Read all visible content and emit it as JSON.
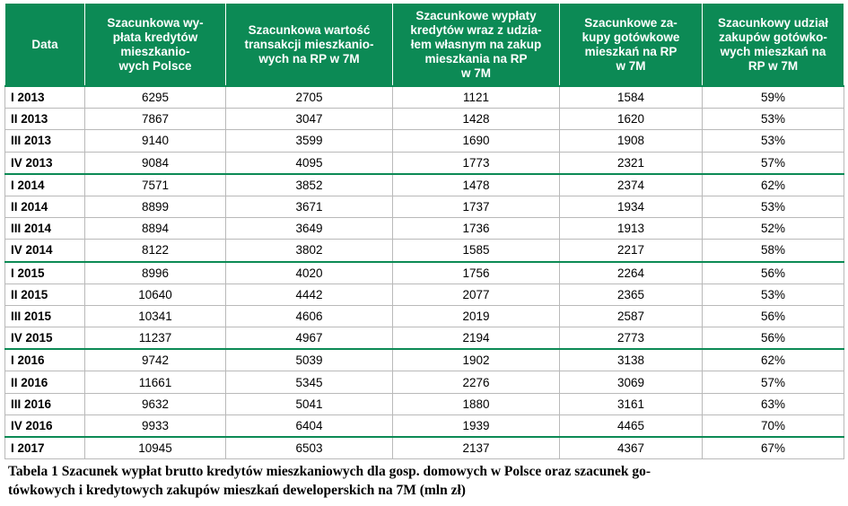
{
  "table": {
    "headers": [
      "Data",
      "Szacunkowa wy-\npłata kredytów\nmieszkanio-\nwych Polsce",
      "Szacunkowa wartość\ntransakcji mieszkanio-\nwych na RP w 7M",
      "Szacunkowe wypłaty\nkredytów wraz z udzia-\nłem własnym na zakup\nmieszkania na RP\nw 7M",
      "Szacunkowe za-\nkupy gotówkowe\nmieszkań na RP\nw 7M",
      "Szacunkowy udział\nzakupów gotówko-\nwych mieszkań na\nRP w 7M"
    ],
    "rows": [
      [
        "I 2013",
        "6295",
        "2705",
        "1121",
        "1584",
        "59%"
      ],
      [
        "II 2013",
        "7867",
        "3047",
        "1428",
        "1620",
        "53%"
      ],
      [
        "III 2013",
        "9140",
        "3599",
        "1690",
        "1908",
        "53%"
      ],
      [
        "IV 2013",
        "9084",
        "4095",
        "1773",
        "2321",
        "57%"
      ],
      [
        "I 2014",
        "7571",
        "3852",
        "1478",
        "2374",
        "62%"
      ],
      [
        "II 2014",
        "8899",
        "3671",
        "1737",
        "1934",
        "53%"
      ],
      [
        "III 2014",
        "8894",
        "3649",
        "1736",
        "1913",
        "52%"
      ],
      [
        "IV 2014",
        "8122",
        "3802",
        "1585",
        "2217",
        "58%"
      ],
      [
        "I 2015",
        "8996",
        "4020",
        "1756",
        "2264",
        "56%"
      ],
      [
        "II 2015",
        "10640",
        "4442",
        "2077",
        "2365",
        "53%"
      ],
      [
        "III 2015",
        "10341",
        "4606",
        "2019",
        "2587",
        "56%"
      ],
      [
        "IV 2015",
        "11237",
        "4967",
        "2194",
        "2773",
        "56%"
      ],
      [
        "I 2016",
        "9742",
        "5039",
        "1902",
        "3138",
        "62%"
      ],
      [
        "II 2016",
        "11661",
        "5345",
        "2276",
        "3069",
        "57%"
      ],
      [
        "III 2016",
        "9632",
        "5041",
        "1880",
        "3161",
        "63%"
      ],
      [
        "IV 2016",
        "9933",
        "6404",
        "1939",
        "4465",
        "70%"
      ],
      [
        "I 2017",
        "10945",
        "6503",
        "2137",
        "4367",
        "67%"
      ]
    ]
  },
  "caption": "Tabela 1 Szacunek wypłat brutto kredytów mieszkaniowych dla gosp. domowych w Polsce oraz szacunek go-\ntówkowych i kredytowych zakupów mieszkań deweloperskich na 7M (mln zł)",
  "colors": {
    "header_bg": "#0c8a55",
    "header_text": "#ffffff",
    "grid": "#b9b9b9"
  }
}
